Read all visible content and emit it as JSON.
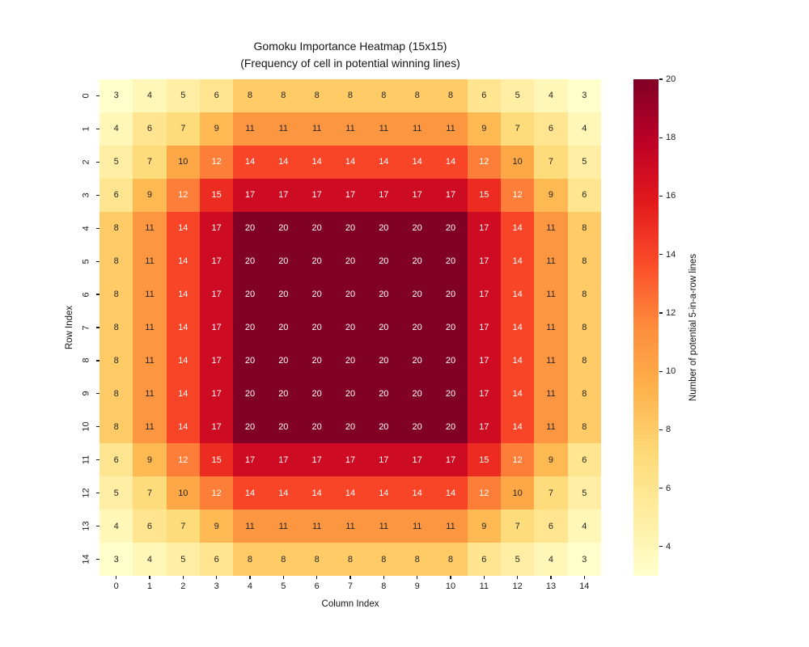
{
  "title": {
    "line1": "Gomoku Importance Heatmap (15x15)",
    "line2": "(Frequency of cell in potential winning lines)"
  },
  "chart_data": {
    "type": "heatmap",
    "title_lines": [
      "Gomoku Importance Heatmap (15x15)",
      "(Frequency of cell in potential winning lines)"
    ],
    "xlabel": "Column Index",
    "ylabel": "Row Index",
    "colorbar_label": "Number of potential 5-in-a-row lines",
    "x_ticklabels": [
      "0",
      "1",
      "2",
      "3",
      "4",
      "5",
      "6",
      "7",
      "8",
      "9",
      "10",
      "11",
      "12",
      "13",
      "14"
    ],
    "y_ticklabels": [
      "0",
      "1",
      "2",
      "3",
      "4",
      "5",
      "6",
      "7",
      "8",
      "9",
      "10",
      "11",
      "12",
      "13",
      "14"
    ],
    "colorbar_ticks": [
      4,
      6,
      8,
      10,
      12,
      14,
      16,
      18,
      20
    ],
    "vmin": 3,
    "vmax": 20,
    "colormap": "YlOrRd",
    "colormap_stops": [
      "#ffffcc",
      "#ffeda0",
      "#fed976",
      "#feb24c",
      "#fd8d3c",
      "#fc4e2a",
      "#e31a1c",
      "#bd0026",
      "#800026"
    ],
    "grid": false,
    "legend": "colorbar-right",
    "values": [
      [
        3,
        4,
        5,
        6,
        8,
        8,
        8,
        8,
        8,
        8,
        8,
        6,
        5,
        4,
        3
      ],
      [
        4,
        6,
        7,
        9,
        11,
        11,
        11,
        11,
        11,
        11,
        11,
        9,
        7,
        6,
        4
      ],
      [
        5,
        7,
        10,
        12,
        14,
        14,
        14,
        14,
        14,
        14,
        14,
        12,
        10,
        7,
        5
      ],
      [
        6,
        9,
        12,
        15,
        17,
        17,
        17,
        17,
        17,
        17,
        17,
        15,
        12,
        9,
        6
      ],
      [
        8,
        11,
        14,
        17,
        20,
        20,
        20,
        20,
        20,
        20,
        20,
        17,
        14,
        11,
        8
      ],
      [
        8,
        11,
        14,
        17,
        20,
        20,
        20,
        20,
        20,
        20,
        20,
        17,
        14,
        11,
        8
      ],
      [
        8,
        11,
        14,
        17,
        20,
        20,
        20,
        20,
        20,
        20,
        20,
        17,
        14,
        11,
        8
      ],
      [
        8,
        11,
        14,
        17,
        20,
        20,
        20,
        20,
        20,
        20,
        20,
        17,
        14,
        11,
        8
      ],
      [
        8,
        11,
        14,
        17,
        20,
        20,
        20,
        20,
        20,
        20,
        20,
        17,
        14,
        11,
        8
      ],
      [
        8,
        11,
        14,
        17,
        20,
        20,
        20,
        20,
        20,
        20,
        20,
        17,
        14,
        11,
        8
      ],
      [
        8,
        11,
        14,
        17,
        20,
        20,
        20,
        20,
        20,
        20,
        20,
        17,
        14,
        11,
        8
      ],
      [
        6,
        9,
        12,
        15,
        17,
        17,
        17,
        17,
        17,
        17,
        17,
        15,
        12,
        9,
        6
      ],
      [
        5,
        7,
        10,
        12,
        14,
        14,
        14,
        14,
        14,
        14,
        14,
        12,
        10,
        7,
        5
      ],
      [
        4,
        6,
        7,
        9,
        11,
        11,
        11,
        11,
        11,
        11,
        11,
        9,
        7,
        6,
        4
      ],
      [
        3,
        4,
        5,
        6,
        8,
        8,
        8,
        8,
        8,
        8,
        8,
        6,
        5,
        4,
        3
      ]
    ],
    "value_colors": {
      "3": "#ffffcc",
      "4": "#fff7b7",
      "5": "#ffeea3",
      "6": "#ffe58f",
      "7": "#fedb7b",
      "8": "#fecb67",
      "9": "#feb953",
      "10": "#fea747",
      "11": "#fd9640",
      "12": "#fd7e38",
      "14": "#f84528",
      "15": "#ec2c21",
      "17": "#cd0b22",
      "20": "#800026"
    },
    "annot_color_dark": "#262626",
    "annot_color_light": "#ffffff",
    "white_text_threshold": 12
  }
}
